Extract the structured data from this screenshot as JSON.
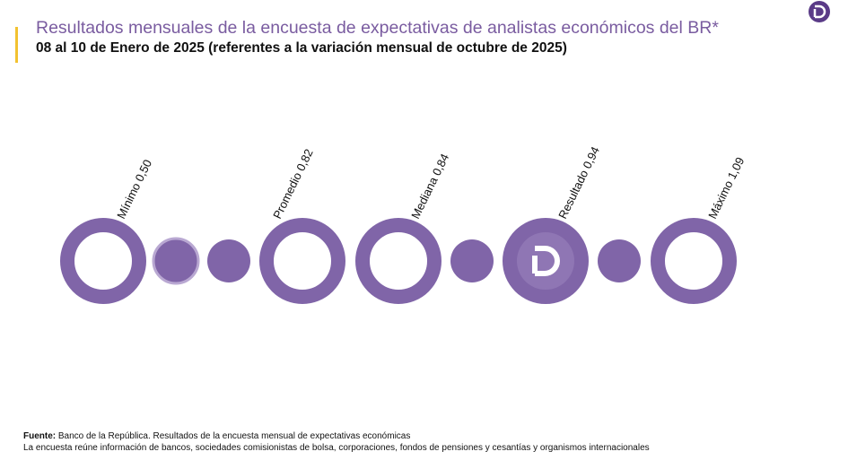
{
  "header": {
    "title": "Resultados mensuales de la encuesta de expectativas de analistas económicos del BR*",
    "subtitle": "08 al 10 de Enero de 2025 (referentes a la variación mensual de octubre de 2025)"
  },
  "markers": [
    "Mínimo 0,50",
    "Promedio 0,82",
    "Mediana 0,84",
    "Resultado 0,94",
    "Máximo 1,09"
  ],
  "footer": {
    "source_label": "Fuente:",
    "source_text": "Banco de la República. Resultados de la encuesta mensual de expectativas económicas",
    "note": "La encuesta reúne información de bancos, sociedades comisionistas de bolsa, corporaciones, fondos de pensiones y cesantías y organismos internacionales"
  }
}
